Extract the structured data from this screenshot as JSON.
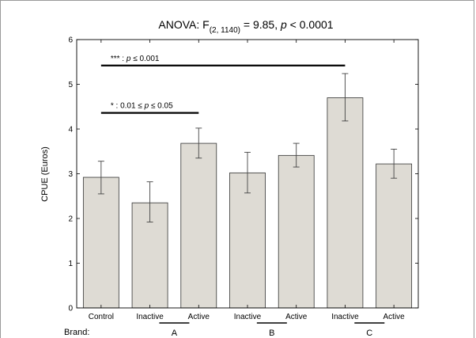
{
  "chart_data": {
    "type": "bar",
    "title": {
      "prefix": "ANOVA: F",
      "subscript": "(2, 1140)",
      "suffix": " = 9.85,  ",
      "p_italic": "p",
      "p_rest": " < 0.0001"
    },
    "ylabel": "CPUE (Euros)",
    "ylim": [
      0,
      6
    ],
    "yticks": [
      "0",
      "1",
      "2",
      "3",
      "4",
      "5",
      "6"
    ],
    "categories": [
      "Control",
      "Inactive",
      "Active",
      "Inactive",
      "Active",
      "Inactive",
      "Active"
    ],
    "values": [
      2.92,
      2.35,
      3.68,
      3.02,
      3.41,
      4.7,
      3.22
    ],
    "error_low": [
      2.55,
      1.92,
      3.35,
      2.57,
      3.15,
      4.18,
      2.9
    ],
    "error_high": [
      3.28,
      2.82,
      4.02,
      3.48,
      3.68,
      5.24,
      3.55
    ],
    "bar_color": "#dedbd4",
    "brand_row": {
      "label": "Brand:",
      "groups": [
        {
          "name": "A",
          "from": 1,
          "to": 2
        },
        {
          "name": "B",
          "from": 3,
          "to": 4
        },
        {
          "name": "C",
          "from": 5,
          "to": 6
        }
      ]
    },
    "significance": [
      {
        "from": 0,
        "to": 5,
        "y": 5.42,
        "stars": "***",
        "sep": " : ",
        "p": "p",
        "rest": " ≤ 0.001"
      },
      {
        "from": 0,
        "to": 2,
        "y": 4.36,
        "stars": "*",
        "sep": " : 0.01 ≤ ",
        "p": "p",
        "rest": " ≤ 0.05"
      }
    ]
  }
}
